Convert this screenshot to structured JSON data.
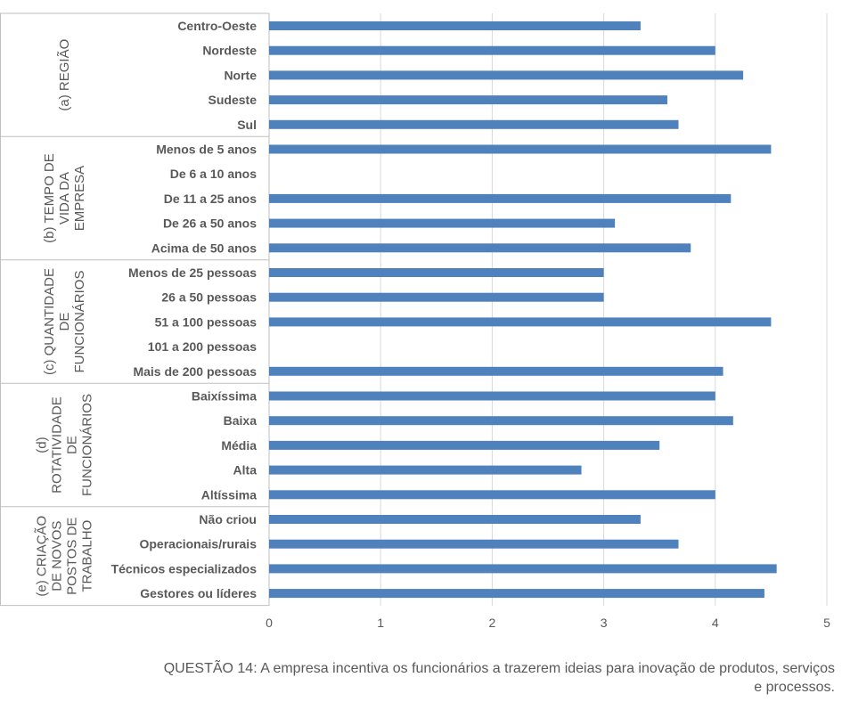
{
  "chart_data": {
    "type": "bar",
    "orientation": "horizontal",
    "title": "",
    "xlim": [
      0,
      5
    ],
    "xticks": [
      0,
      1,
      2,
      3,
      4,
      5
    ],
    "grid": "vertical",
    "bar_color": "#4F81BD",
    "groups": [
      {
        "label": [
          "(a) REGIÃO"
        ],
        "categories": [
          "Centro-Oeste",
          "Nordeste",
          "Norte",
          "Sudeste",
          "Sul"
        ],
        "values": [
          3.33,
          4.0,
          4.25,
          3.57,
          3.67
        ]
      },
      {
        "label": [
          "(b) TEMPO DE",
          "VIDA DA",
          "EMPRESA"
        ],
        "categories": [
          "Menos de 5 anos",
          "De 6 a 10 anos",
          "De 11 a 25 anos",
          "De 26 a 50 anos",
          "Acima de 50 anos"
        ],
        "values": [
          4.5,
          null,
          4.14,
          3.1,
          3.78
        ]
      },
      {
        "label": [
          "(c) QUANTIDADE",
          "DE",
          "FUNCIONÁRIOS"
        ],
        "categories": [
          "Menos de 25 pessoas",
          "26 a 50 pessoas",
          "51 a 100 pessoas",
          "101 a 200 pessoas",
          "Mais de 200 pessoas"
        ],
        "values": [
          3.0,
          3.0,
          4.5,
          null,
          4.07
        ]
      },
      {
        "label": [
          "(d)",
          "ROTATIVIDADE",
          "DE",
          "FUNCIONÁRIOS"
        ],
        "categories": [
          "Baixíssima",
          "Baixa",
          "Média",
          "Alta",
          "Altíssima"
        ],
        "values": [
          4.0,
          4.16,
          3.5,
          2.8,
          4.0
        ]
      },
      {
        "label": [
          "(e) CRIAÇÃO",
          "DE NOVOS",
          "POSTOS DE",
          "TRABALHO"
        ],
        "categories": [
          "Não criou",
          "Operacionais/rurais",
          "Técnicos especializados",
          "Gestores ou líderes"
        ],
        "values": [
          3.33,
          3.67,
          4.55,
          4.44
        ]
      }
    ]
  },
  "caption": "QUESTÃO 14: A empresa incentiva os funcionários a trazerem ideias para inovação de produtos, serviços e processos."
}
